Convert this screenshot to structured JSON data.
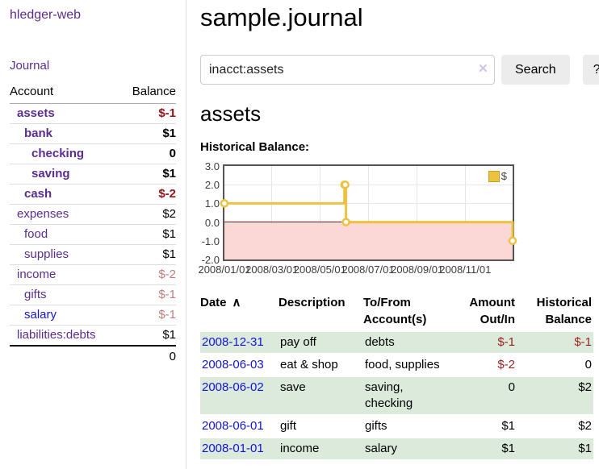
{
  "app": {
    "brand": "hledger-web"
  },
  "nav": {
    "journal": "Journal"
  },
  "sidebar": {
    "header": {
      "account": "Account",
      "balance": "Balance"
    },
    "accounts": [
      {
        "label": "assets",
        "depth": 1,
        "bold": true,
        "balance": "$-1",
        "balance_tone": "neg-strong"
      },
      {
        "label": "bank",
        "depth": 2,
        "bold": true,
        "balance": "$1",
        "balance_tone": "normal"
      },
      {
        "label": "checking",
        "depth": 3,
        "bold": true,
        "balance": "0",
        "balance_tone": "normal"
      },
      {
        "label": "saving",
        "depth": 3,
        "bold": true,
        "balance": "$1",
        "balance_tone": "normal"
      },
      {
        "label": "cash",
        "depth": 2,
        "bold": true,
        "balance": "$-2",
        "balance_tone": "neg-strong"
      },
      {
        "label": "expenses",
        "depth": 1,
        "bold": false,
        "balance": "$2",
        "balance_tone": "normal"
      },
      {
        "label": "food",
        "depth": 2,
        "bold": false,
        "balance": "$1",
        "balance_tone": "normal"
      },
      {
        "label": "supplies",
        "depth": 2,
        "bold": false,
        "balance": "$1",
        "balance_tone": "normal"
      },
      {
        "label": "income",
        "depth": 1,
        "bold": false,
        "balance": "$-2",
        "balance_tone": "neg-soft"
      },
      {
        "label": "gifts",
        "depth": 2,
        "bold": false,
        "balance": "$-1",
        "balance_tone": "neg-soft"
      },
      {
        "label": "salary",
        "depth": 2,
        "bold": false,
        "balance": "$-1",
        "balance_tone": "neg-soft",
        "link_tone": "blue"
      },
      {
        "label": "liabilities:debts",
        "depth": 1,
        "bold": false,
        "balance": "$1",
        "balance_tone": "normal"
      }
    ],
    "total": "0"
  },
  "header": {
    "title": "sample.journal"
  },
  "search": {
    "value": "inacct:assets",
    "clear_icon": "×",
    "search_button": "Search",
    "help_button": "?"
  },
  "account_page": {
    "title": "assets",
    "chart_title": "Historical Balance:"
  },
  "chart_data": {
    "type": "line",
    "step": true,
    "title": "Historical Balance",
    "series": [
      {
        "name": "$",
        "color": "#edc240",
        "points": [
          [
            "2008-01-01",
            1
          ],
          [
            "2008-06-01",
            2
          ],
          [
            "2008-06-02",
            2
          ],
          [
            "2008-06-03",
            0
          ],
          [
            "2008-12-31",
            -1
          ]
        ]
      }
    ],
    "ylim": [
      -2,
      3
    ],
    "y_ticks": [
      3.0,
      2.0,
      1.0,
      0.0,
      -1.0,
      -2.0
    ],
    "x_ticks": [
      "2008/01/01",
      "2008/03/01",
      "2008/05/01",
      "2008/07/01",
      "2008/09/01",
      "2008/11/01"
    ],
    "x_range": [
      "2008-01-01",
      "2008-12-31"
    ],
    "grid": true,
    "legend_position": "top-right",
    "legend": {
      "label": "$",
      "swatch_color": "#edc240"
    },
    "negative_region_color": "#fbd7d6",
    "zero_line_color": "#8b0000"
  },
  "register": {
    "columns": [
      {
        "line1": "Date",
        "line2": "",
        "align": "left",
        "sort": "asc",
        "sort_icon": "∧"
      },
      {
        "line1": "Description",
        "line2": "",
        "align": "left"
      },
      {
        "line1": "To/From",
        "line2": "Account(s)",
        "align": "left"
      },
      {
        "line1": "Amount",
        "line2": "Out/In",
        "align": "right"
      },
      {
        "line1": "Historical",
        "line2": "Balance",
        "align": "right"
      }
    ],
    "rows": [
      {
        "date": "2008-12-31",
        "description": "pay off",
        "accounts": "debts",
        "amount": "$-1",
        "amount_negative": true,
        "balance": "$-1",
        "balance_negative": true,
        "shaded": true
      },
      {
        "date": "2008-06-03",
        "description": "eat & shop",
        "accounts": "food, supplies",
        "amount": "$-2",
        "amount_negative": true,
        "balance": "0",
        "balance_negative": false,
        "shaded": false
      },
      {
        "date": "2008-06-02",
        "description": "save",
        "accounts": "saving, checking",
        "amount": "0",
        "amount_negative": false,
        "balance": "$2",
        "balance_negative": false,
        "shaded": true
      },
      {
        "date": "2008-06-01",
        "description": "gift",
        "accounts": "gifts",
        "amount": "$1",
        "amount_negative": false,
        "balance": "$2",
        "balance_negative": false,
        "shaded": false
      },
      {
        "date": "2008-01-01",
        "description": "income",
        "accounts": "salary",
        "amount": "$1",
        "amount_negative": false,
        "balance": "$1",
        "balance_negative": false,
        "shaded": true
      }
    ]
  }
}
